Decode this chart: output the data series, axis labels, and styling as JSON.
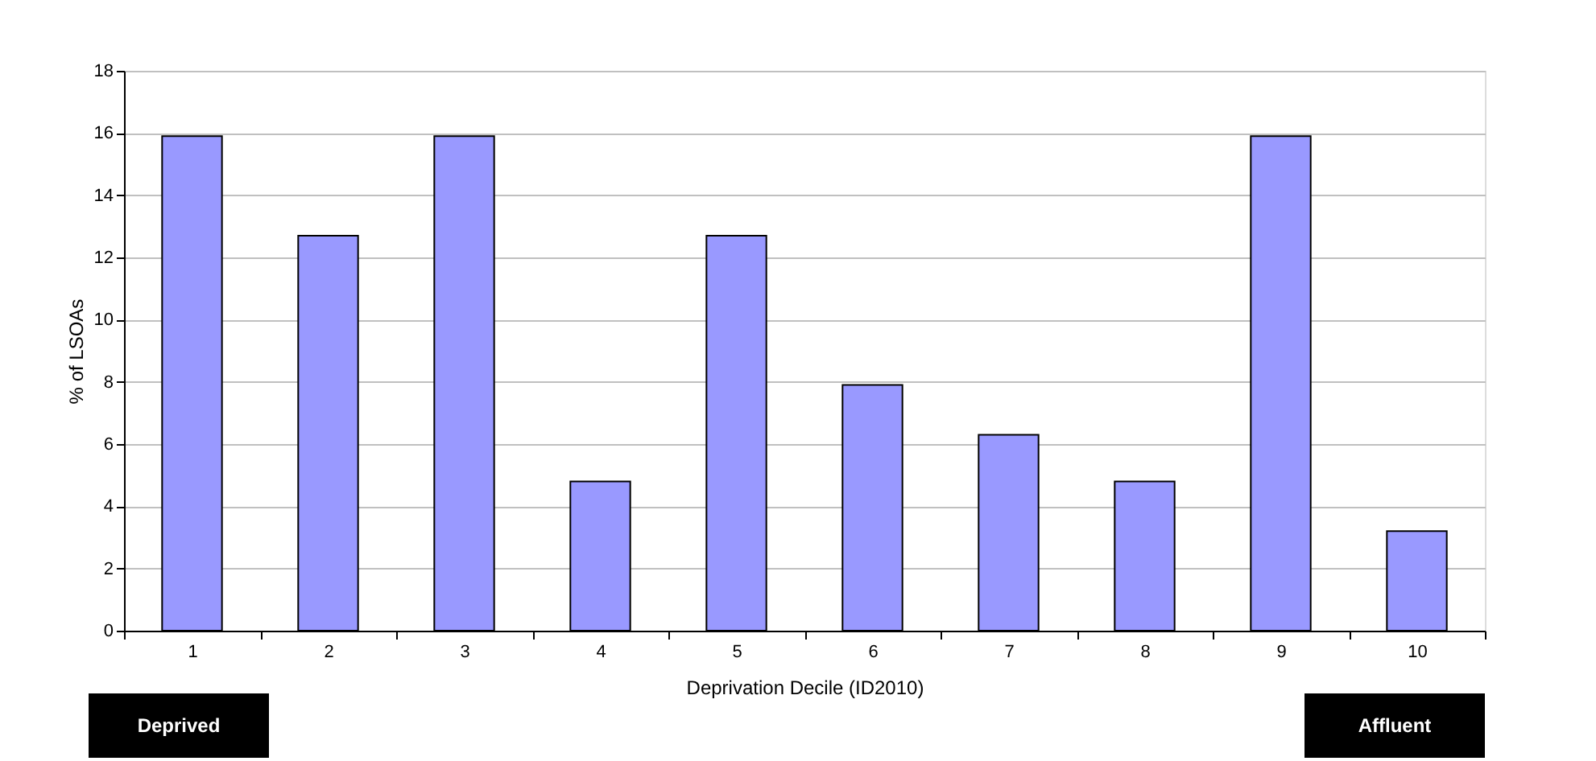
{
  "chart_data": {
    "type": "bar",
    "xlabel": "Deprivation Decile (ID2010)",
    "ylabel": "% of LSOAs",
    "categories": [
      "1",
      "2",
      "3",
      "4",
      "5",
      "6",
      "7",
      "8",
      "9",
      "10"
    ],
    "values": [
      15.9,
      12.7,
      15.9,
      4.8,
      12.7,
      7.9,
      6.3,
      4.8,
      15.9,
      3.2
    ],
    "color": "#9999ff",
    "ylim": [
      0,
      18
    ],
    "yticks": [
      0,
      2,
      4,
      6,
      8,
      10,
      12,
      14,
      16,
      18
    ],
    "grid": "y",
    "annotations": [
      "Deprived",
      "Affluent"
    ]
  }
}
